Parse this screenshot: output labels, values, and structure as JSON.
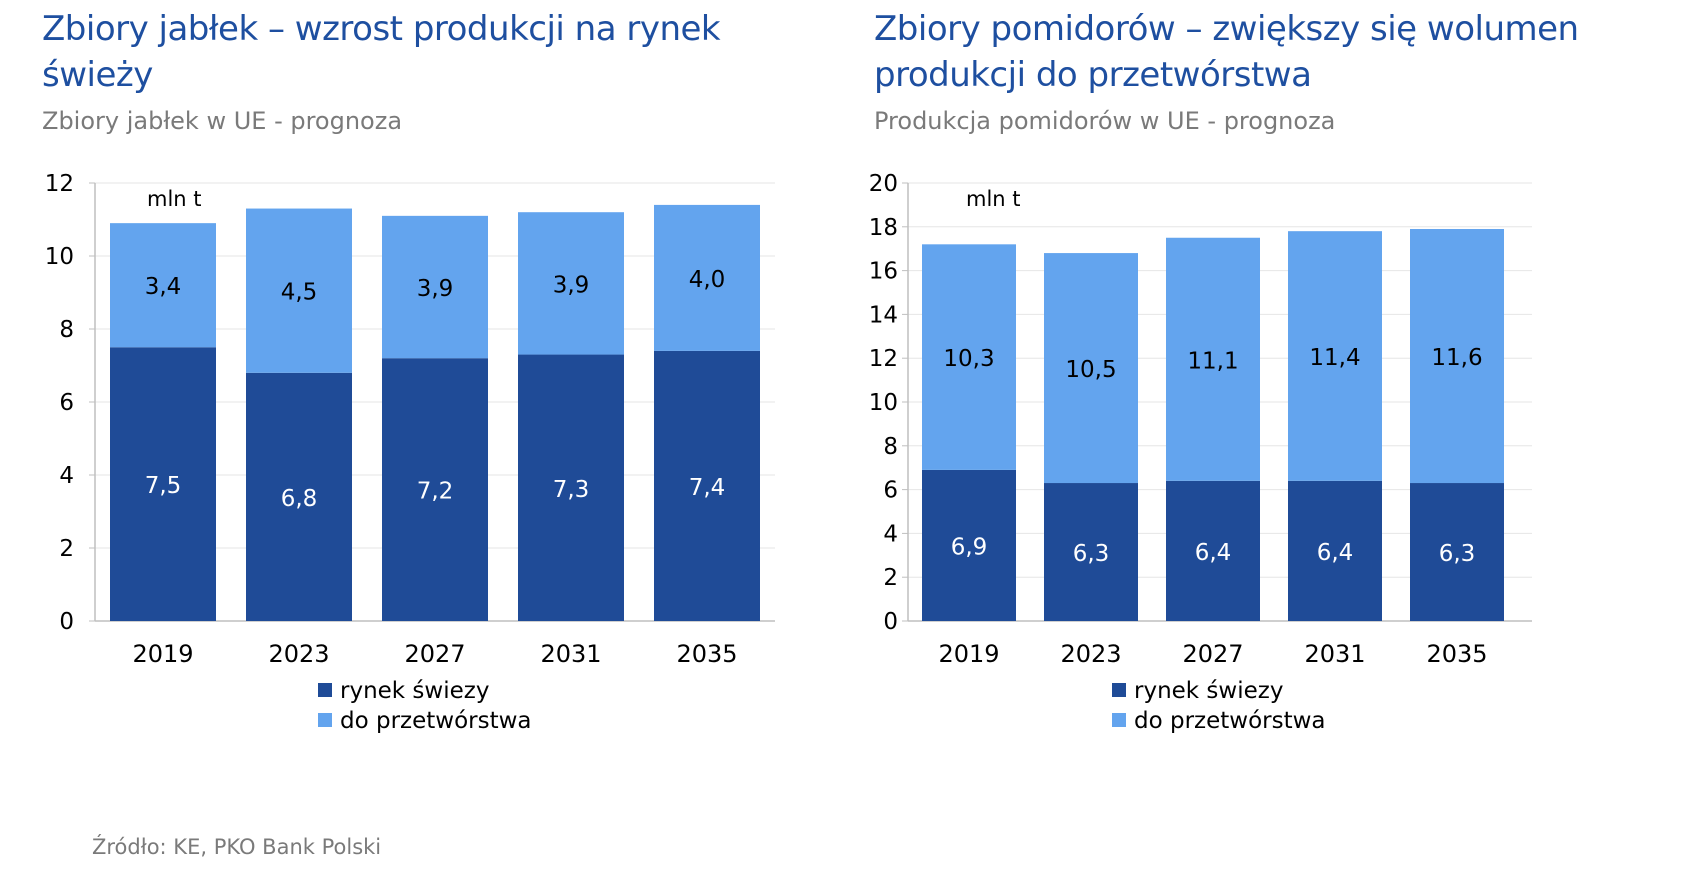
{
  "source": "Źródło: KE, PKO Bank Polski",
  "colors": {
    "fresh": "#1f4b97",
    "processing": "#63a4ee",
    "title": "#1e4fa0",
    "subtitle": "#7a7a7a",
    "text": "#000000",
    "label_on_dark": "#ffffff"
  },
  "panels": [
    {
      "title_line1": "Zbiory jabłek – wzrost produkcji na rynek",
      "title_line2": "świeży",
      "subtitle": "Zbiory jabłek w UE - prognoza",
      "chart_data": {
        "type": "bar",
        "stacked": true,
        "unit_label": "mln t",
        "categories": [
          "2019",
          "2023",
          "2027",
          "2031",
          "2035"
        ],
        "series": [
          {
            "name": "rynek świezy",
            "values": [
              7.5,
              6.8,
              7.2,
              7.3,
              7.4
            ],
            "labels": [
              "7,5",
              "6,8",
              "7,2",
              "7,3",
              "7,4"
            ]
          },
          {
            "name": "do przetwórstwa",
            "values": [
              3.4,
              4.5,
              3.9,
              3.9,
              4.0
            ],
            "labels": [
              "3,4",
              "4,5",
              "3,9",
              "3,9",
              "4,0"
            ]
          }
        ],
        "ylim": [
          0,
          12
        ],
        "yticks": [
          0,
          2,
          4,
          6,
          8,
          10,
          12
        ],
        "grid": true,
        "legend_position": "bottom"
      }
    },
    {
      "title_line1": "Zbiory pomidorów – zwiększy się wolumen",
      "title_line2": "produkcji do przetwórstwa",
      "subtitle": "Produkcja pomidorów w UE - prognoza",
      "chart_data": {
        "type": "bar",
        "stacked": true,
        "unit_label": "mln t",
        "categories": [
          "2019",
          "2023",
          "2027",
          "2031",
          "2035"
        ],
        "series": [
          {
            "name": "rynek świezy",
            "values": [
              6.9,
              6.3,
              6.4,
              6.4,
              6.3
            ],
            "labels": [
              "6,9",
              "6,3",
              "6,4",
              "6,4",
              "6,3"
            ]
          },
          {
            "name": "do przetwórstwa",
            "values": [
              10.3,
              10.5,
              11.1,
              11.4,
              11.6
            ],
            "labels": [
              "10,3",
              "10,5",
              "11,1",
              "11,4",
              "11,6"
            ]
          }
        ],
        "ylim": [
          0,
          20
        ],
        "yticks": [
          0,
          2,
          4,
          6,
          8,
          10,
          12,
          14,
          16,
          18,
          20
        ],
        "grid": true,
        "legend_position": "bottom"
      }
    }
  ]
}
